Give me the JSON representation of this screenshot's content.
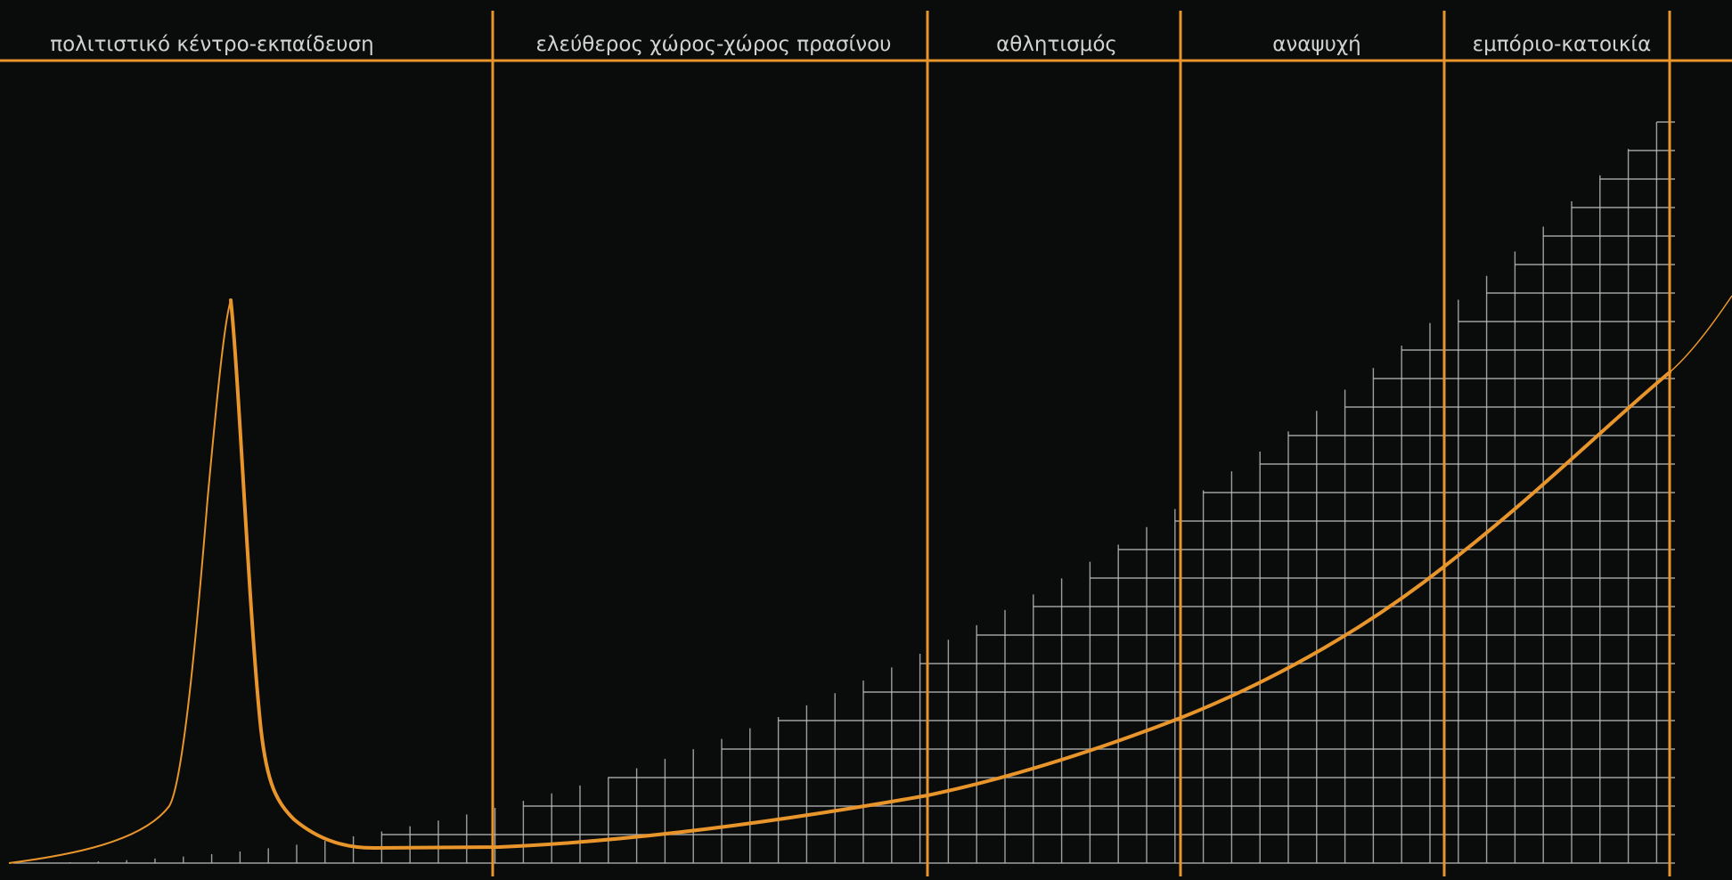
{
  "zones": [
    {
      "label": "πολιτιστικό κέντρο-εκπαίδευση"
    },
    {
      "label": "ελεύθερος χώρος-χώρος πρασίνου"
    },
    {
      "label": "αθλητισμός"
    },
    {
      "label": "αναψυχή"
    },
    {
      "label": "εμπόριο-κατοικία"
    }
  ],
  "colors": {
    "background": "#0a0b0b",
    "accent": "#e8952b",
    "grid": "#b8b8b8",
    "label_text": "#d2d2d2"
  }
}
